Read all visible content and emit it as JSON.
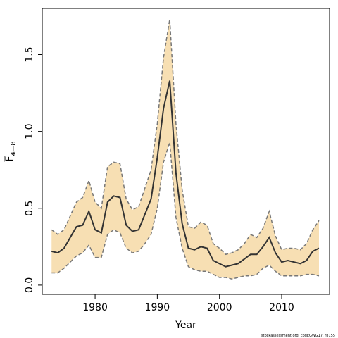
{
  "chart_data": {
    "type": "band-line",
    "xlabel": "Year",
    "ylabel": {
      "base": "F",
      "subscript": "4−8"
    },
    "footnote": "stockassessment.org, codEGWG17, r8155",
    "x": [
      1973,
      1974,
      1975,
      1976,
      1977,
      1978,
      1979,
      1980,
      1981,
      1982,
      1983,
      1984,
      1985,
      1986,
      1987,
      1988,
      1989,
      1990,
      1991,
      1992,
      1993,
      1994,
      1995,
      1996,
      1997,
      1998,
      1999,
      2000,
      2001,
      2002,
      2003,
      2004,
      2005,
      2006,
      2007,
      2008,
      2009,
      2010,
      2011,
      2012,
      2013,
      2014,
      2015,
      2016
    ],
    "values": [
      0.22,
      0.21,
      0.24,
      0.31,
      0.38,
      0.39,
      0.48,
      0.36,
      0.34,
      0.54,
      0.58,
      0.57,
      0.39,
      0.35,
      0.36,
      0.46,
      0.56,
      0.83,
      1.15,
      1.33,
      0.73,
      0.4,
      0.24,
      0.23,
      0.25,
      0.24,
      0.16,
      0.14,
      0.12,
      0.13,
      0.14,
      0.17,
      0.2,
      0.2,
      0.25,
      0.31,
      0.21,
      0.15,
      0.16,
      0.15,
      0.14,
      0.16,
      0.22,
      0.24
    ],
    "upper": [
      0.36,
      0.33,
      0.36,
      0.45,
      0.54,
      0.57,
      0.68,
      0.54,
      0.5,
      0.77,
      0.8,
      0.79,
      0.56,
      0.49,
      0.51,
      0.63,
      0.75,
      1.05,
      1.48,
      1.73,
      1.05,
      0.62,
      0.38,
      0.37,
      0.41,
      0.39,
      0.27,
      0.24,
      0.2,
      0.21,
      0.23,
      0.27,
      0.33,
      0.31,
      0.37,
      0.48,
      0.32,
      0.23,
      0.24,
      0.24,
      0.23,
      0.27,
      0.36,
      0.42
    ],
    "lower": [
      0.08,
      0.08,
      0.11,
      0.15,
      0.19,
      0.21,
      0.26,
      0.18,
      0.18,
      0.33,
      0.36,
      0.34,
      0.24,
      0.21,
      0.22,
      0.27,
      0.33,
      0.5,
      0.8,
      0.93,
      0.44,
      0.24,
      0.12,
      0.1,
      0.09,
      0.09,
      0.07,
      0.05,
      0.05,
      0.04,
      0.05,
      0.06,
      0.06,
      0.07,
      0.11,
      0.13,
      0.09,
      0.06,
      0.06,
      0.06,
      0.06,
      0.07,
      0.07,
      0.06
    ],
    "line_color": "#333333",
    "band_color": "#f7dfb3",
    "bound_color": "#777777",
    "xlim": [
      1971.5,
      2017.7
    ],
    "ylim": [
      -0.06,
      1.8
    ],
    "xticks": [
      1980,
      1990,
      2000,
      2010
    ],
    "yticks": [
      {
        "value": 0,
        "label": "0.0"
      },
      0.5,
      {
        "value": 1,
        "label": "1.0"
      },
      1.5
    ]
  }
}
